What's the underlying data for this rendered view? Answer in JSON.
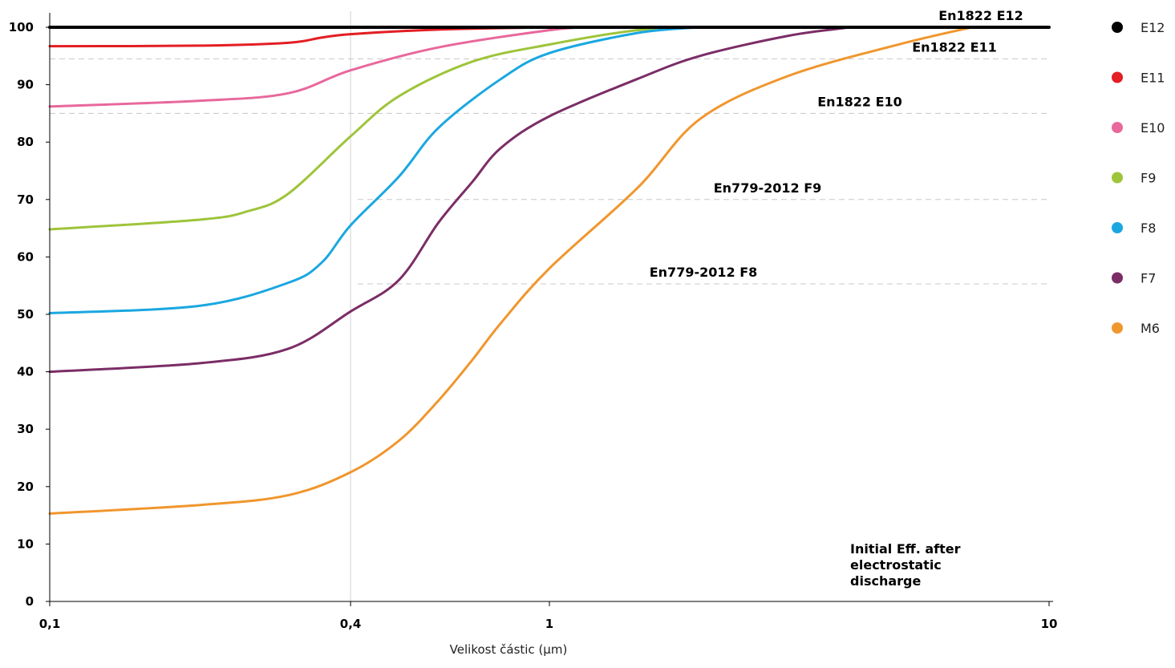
{
  "chart_data": {
    "type": "line",
    "title": "",
    "xlabel": "Velikost částic (μm)",
    "ylabel": "",
    "xscale": "log",
    "xlim": [
      0.1,
      10
    ],
    "ylim": [
      0,
      100
    ],
    "x_ticks": [
      {
        "value": 0.1,
        "label": "0,1"
      },
      {
        "value": 0.4,
        "label": "0,4"
      },
      {
        "value": 1,
        "label": "1"
      },
      {
        "value": 10,
        "label": "10"
      }
    ],
    "y_ticks": [
      0,
      10,
      20,
      30,
      40,
      50,
      60,
      70,
      80,
      90,
      100
    ],
    "grid": {
      "vertical_at_x": [
        0.4
      ],
      "horizontal": false
    },
    "legend_position": "right",
    "series": [
      {
        "name": "E12",
        "color": "#000000",
        "points": [
          [
            0.1,
            100
          ],
          [
            10,
            100
          ]
        ]
      },
      {
        "name": "E11",
        "color": "#e31e24",
        "points": [
          [
            0.1,
            96.7
          ],
          [
            0.2,
            96.8
          ],
          [
            0.3,
            97.3
          ],
          [
            0.35,
            98.2
          ],
          [
            0.4,
            98.8
          ],
          [
            0.6,
            99.6
          ],
          [
            1,
            100
          ]
        ]
      },
      {
        "name": "E10",
        "color": "#e8689c",
        "points": [
          [
            0.1,
            86.2
          ],
          [
            0.2,
            87.2
          ],
          [
            0.3,
            88.5
          ],
          [
            0.4,
            92.5
          ],
          [
            0.6,
            96.5
          ],
          [
            1,
            99.5
          ],
          [
            1.2,
            100
          ]
        ]
      },
      {
        "name": "F9",
        "color": "#9ec43a",
        "points": [
          [
            0.1,
            64.8
          ],
          [
            0.2,
            66.5
          ],
          [
            0.25,
            68
          ],
          [
            0.3,
            71
          ],
          [
            0.4,
            81
          ],
          [
            0.5,
            88
          ],
          [
            0.7,
            94
          ],
          [
            1,
            97
          ],
          [
            1.5,
            99.5
          ],
          [
            2,
            100
          ]
        ]
      },
      {
        "name": "F8",
        "color": "#1aa7e0",
        "points": [
          [
            0.1,
            50.2
          ],
          [
            0.2,
            51.5
          ],
          [
            0.3,
            55.5
          ],
          [
            0.35,
            59
          ],
          [
            0.4,
            65.5
          ],
          [
            0.5,
            74
          ],
          [
            0.6,
            82.5
          ],
          [
            0.8,
            91
          ],
          [
            1,
            95.5
          ],
          [
            1.5,
            99
          ],
          [
            2,
            100
          ]
        ]
      },
      {
        "name": "F7",
        "color": "#7b2d66",
        "points": [
          [
            0.1,
            40
          ],
          [
            0.2,
            41.5
          ],
          [
            0.3,
            44
          ],
          [
            0.4,
            50.5
          ],
          [
            0.5,
            56
          ],
          [
            0.6,
            66
          ],
          [
            0.7,
            73
          ],
          [
            0.8,
            79
          ],
          [
            1,
            84.5
          ],
          [
            1.5,
            91
          ],
          [
            2,
            95
          ],
          [
            3,
            98.5
          ],
          [
            4,
            100
          ]
        ]
      },
      {
        "name": "M6",
        "color": "#f0962d",
        "points": [
          [
            0.1,
            15.3
          ],
          [
            0.2,
            16.8
          ],
          [
            0.3,
            18.5
          ],
          [
            0.4,
            22.5
          ],
          [
            0.5,
            28
          ],
          [
            0.6,
            35
          ],
          [
            0.7,
            42
          ],
          [
            0.8,
            48.5
          ],
          [
            1,
            58
          ],
          [
            1.5,
            72
          ],
          [
            2,
            84
          ],
          [
            3,
            91.5
          ],
          [
            5,
            97
          ],
          [
            7,
            100
          ]
        ]
      }
    ],
    "threshold_lines": [
      {
        "label": "En1822 E12",
        "y": 100
      },
      {
        "label": "En1822 E11",
        "y": 94.5
      },
      {
        "label": "En1822 E10",
        "y": 85
      },
      {
        "label": "En779-2012 F9",
        "y": 70
      },
      {
        "label": "En779-2012 F8",
        "y": 55.3
      }
    ],
    "annotation": [
      "Initial Eff. after",
      "electrostatic",
      "discharge"
    ]
  }
}
